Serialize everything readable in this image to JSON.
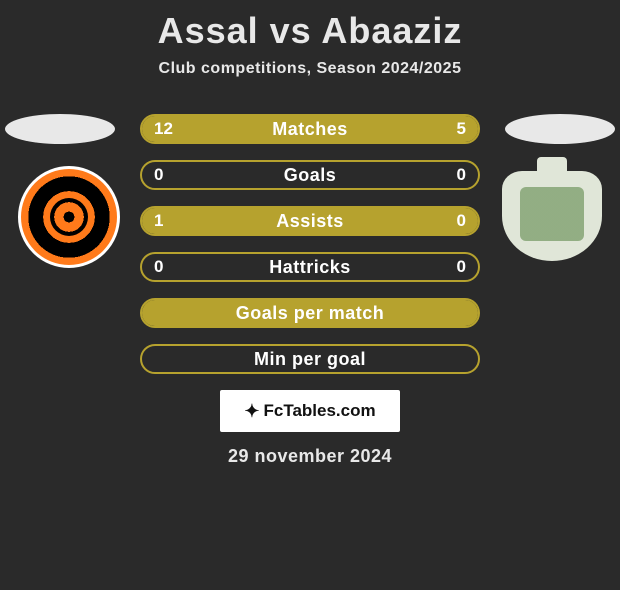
{
  "title": "Assal vs Abaaziz",
  "subtitle": "Club competitions, Season 2024/2025",
  "date": "29 november 2024",
  "fctables_label": "FcTables.com",
  "colors": {
    "bar_fill": "#b6a22e",
    "bar_border": "#b6a22e",
    "text": "#ffffff",
    "background": "#2a2a2a",
    "disc": "#e8e8e8"
  },
  "rows": [
    {
      "label": "Matches",
      "left": "12",
      "right": "5",
      "left_pct": 70,
      "right_pct": 30,
      "show_vals": true
    },
    {
      "label": "Goals",
      "left": "0",
      "right": "0",
      "left_pct": 0,
      "right_pct": 0,
      "show_vals": true
    },
    {
      "label": "Assists",
      "left": "1",
      "right": "0",
      "left_pct": 100,
      "right_pct": 0,
      "show_vals": true
    },
    {
      "label": "Hattricks",
      "left": "0",
      "right": "0",
      "left_pct": 0,
      "right_pct": 0,
      "show_vals": true
    },
    {
      "label": "Goals per match",
      "left": "",
      "right": "",
      "left_pct": 100,
      "right_pct": 0,
      "show_vals": false
    },
    {
      "label": "Min per goal",
      "left": "",
      "right": "",
      "left_pct": 0,
      "right_pct": 0,
      "show_vals": false
    }
  ]
}
